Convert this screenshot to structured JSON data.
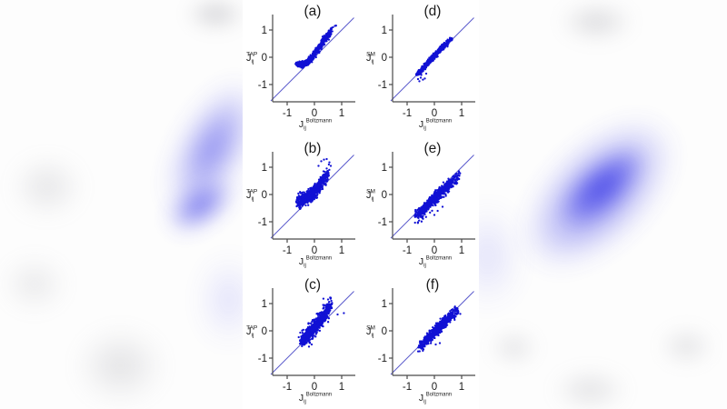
{
  "colors": {
    "point": "#1111d4",
    "identity_line": "#5c5ccd",
    "axis": "#4a4a4a",
    "text": "#1a1a1a",
    "background": "#ffffff",
    "backdrop_blue": "#4a4ae9",
    "backdrop_gray": "#a0a0a8"
  },
  "figure": {
    "x_tick_labels": [
      "-1",
      "0",
      "1"
    ],
    "y_tick_labels": [
      "1",
      "0",
      "-1"
    ]
  },
  "chart_data": [
    {
      "type": "scatter",
      "panel_label": "(a)",
      "grid": {
        "row": 0,
        "col": 0
      },
      "xlabel": {
        "base": "J",
        "sub": "ij",
        "sup": "Boltzmann"
      },
      "ylabel": {
        "base": "J",
        "sub": "ij",
        "sup": "TAP"
      },
      "xlim": [
        -1.55,
        1.45
      ],
      "ylim": [
        -1.6,
        1.6
      ],
      "x_ticks": [
        -1,
        0,
        1
      ],
      "y_ticks": [
        -1,
        0,
        1
      ],
      "identity_line": true,
      "scatter": {
        "n": 650,
        "seed": 11,
        "noise_sd": 0.05,
        "x_jitter": 0.04,
        "spread": "both",
        "trend": [
          [
            -0.62,
            -0.27
          ],
          [
            -0.42,
            -0.25
          ],
          [
            -0.22,
            -0.18
          ],
          [
            -0.02,
            0.1
          ],
          [
            0.18,
            0.38
          ],
          [
            0.38,
            0.63
          ],
          [
            0.55,
            0.88
          ],
          [
            0.72,
            1.08
          ]
        ],
        "weights": [
          2.2,
          2.2,
          2.0,
          1.8,
          1.6,
          1.2,
          0.5
        ],
        "outliers": [
          [
            0.75,
            1.15
          ],
          [
            0.68,
            1.1
          ],
          [
            0.6,
            1.02
          ]
        ]
      }
    },
    {
      "type": "scatter",
      "panel_label": "(d)",
      "grid": {
        "row": 0,
        "col": 1
      },
      "xlabel": {
        "base": "J",
        "sub": "ij",
        "sup": "Boltzmann"
      },
      "ylabel": {
        "base": "J",
        "sub": "ij",
        "sup": "SM"
      },
      "xlim": [
        -1.55,
        1.45
      ],
      "ylim": [
        -1.6,
        1.6
      ],
      "x_ticks": [
        -1,
        0,
        1
      ],
      "y_ticks": [
        -1,
        0,
        1
      ],
      "identity_line": true,
      "scatter": {
        "n": 650,
        "seed": 23,
        "noise_sd": 0.035,
        "x_jitter": 0.035,
        "spread": "both",
        "trend": [
          [
            -0.6,
            -0.62
          ],
          [
            -0.45,
            -0.46
          ],
          [
            -0.3,
            -0.28
          ],
          [
            -0.15,
            -0.11
          ],
          [
            0.0,
            0.05
          ],
          [
            0.2,
            0.26
          ],
          [
            0.4,
            0.47
          ],
          [
            0.63,
            0.7
          ]
        ],
        "weights": [
          1.5,
          2.0,
          2.5,
          2.5,
          2.0,
          1.5,
          1.0
        ],
        "outliers": [
          [
            -0.5,
            -0.75
          ],
          [
            -0.42,
            -0.82
          ],
          [
            -0.35,
            -0.78
          ],
          [
            -0.55,
            -0.88
          ],
          [
            -0.3,
            -0.6
          ],
          [
            -0.48,
            -0.65
          ],
          [
            -0.6,
            -0.8
          ]
        ]
      }
    },
    {
      "type": "scatter",
      "panel_label": "(b)",
      "grid": {
        "row": 1,
        "col": 0
      },
      "xlabel": {
        "base": "J",
        "sub": "ij",
        "sup": "Boltzmann"
      },
      "ylabel": {
        "base": "J",
        "sub": "ij",
        "sup": "TAP"
      },
      "xlim": [
        -1.55,
        1.45
      ],
      "ylim": [
        -1.6,
        1.6
      ],
      "x_ticks": [
        -1,
        0,
        1
      ],
      "y_ticks": [
        -1,
        0,
        1
      ],
      "identity_line": true,
      "scatter": {
        "n": 700,
        "seed": 37,
        "noise_sd": 0.11,
        "x_jitter": 0.05,
        "spread": "both",
        "trend": [
          [
            -0.6,
            -0.26
          ],
          [
            -0.4,
            -0.18
          ],
          [
            -0.2,
            -0.07
          ],
          [
            0.0,
            0.1
          ],
          [
            0.2,
            0.33
          ],
          [
            0.35,
            0.56
          ],
          [
            0.5,
            0.85
          ]
        ],
        "weights": [
          1.8,
          2.4,
          2.6,
          2.2,
          1.6,
          1.0
        ],
        "outliers": [
          [
            0.45,
            1.3
          ],
          [
            0.25,
            1.22
          ],
          [
            0.55,
            1.18
          ],
          [
            0.35,
            1.28
          ],
          [
            0.15,
            1.05
          ],
          [
            -0.65,
            -0.3
          ],
          [
            0.6,
            1.05
          ]
        ]
      }
    },
    {
      "type": "scatter",
      "panel_label": "(e)",
      "grid": {
        "row": 1,
        "col": 1
      },
      "xlabel": {
        "base": "J",
        "sub": "ij",
        "sup": "Boltzmann"
      },
      "ylabel": {
        "base": "J",
        "sub": "ij",
        "sup": "SM"
      },
      "xlim": [
        -1.55,
        1.45
      ],
      "ylim": [
        -1.6,
        1.6
      ],
      "x_ticks": [
        -1,
        0,
        1
      ],
      "y_ticks": [
        -1,
        0,
        1
      ],
      "identity_line": true,
      "scatter": {
        "n": 700,
        "seed": 51,
        "noise_sd": 0.16,
        "x_jitter": 0.05,
        "spread": "below",
        "trend": [
          [
            -0.68,
            -0.7
          ],
          [
            -0.45,
            -0.48
          ],
          [
            -0.2,
            -0.22
          ],
          [
            0.05,
            0.03
          ],
          [
            0.3,
            0.28
          ],
          [
            0.55,
            0.52
          ],
          [
            0.85,
            0.8
          ]
        ],
        "weights": [
          1.2,
          2.0,
          2.6,
          2.6,
          2.0,
          1.2
        ],
        "outliers": [
          [
            0.0,
            -0.75
          ],
          [
            0.12,
            -0.6
          ],
          [
            -0.5,
            -0.82
          ],
          [
            0.3,
            -0.45
          ],
          [
            0.9,
            0.85
          ]
        ]
      }
    },
    {
      "type": "scatter",
      "panel_label": "(c)",
      "grid": {
        "row": 2,
        "col": 0
      },
      "xlabel": {
        "base": "J",
        "sub": "ij",
        "sup": "Boltzmann"
      },
      "ylabel": {
        "base": "J",
        "sub": "ij",
        "sup": "TAP"
      },
      "xlim": [
        -1.55,
        1.45
      ],
      "ylim": [
        -1.6,
        1.6
      ],
      "x_ticks": [
        -1,
        0,
        1
      ],
      "y_ticks": [
        -1,
        0,
        1
      ],
      "identity_line": true,
      "scatter": {
        "n": 650,
        "seed": 67,
        "noise_sd": 0.13,
        "x_jitter": 0.06,
        "spread": "both",
        "trend": [
          [
            -0.5,
            -0.42
          ],
          [
            -0.3,
            -0.2
          ],
          [
            -0.1,
            0.02
          ],
          [
            0.1,
            0.25
          ],
          [
            0.3,
            0.5
          ],
          [
            0.45,
            0.75
          ],
          [
            0.58,
            0.98
          ]
        ],
        "weights": [
          1.4,
          2.2,
          2.6,
          2.4,
          1.8,
          1.0
        ],
        "outliers": [
          [
            1.08,
            0.65
          ],
          [
            0.85,
            0.6
          ],
          [
            0.5,
            1.15
          ],
          [
            0.33,
            1.18
          ],
          [
            -0.2,
            -0.58
          ],
          [
            -0.1,
            -0.5
          ],
          [
            0.62,
            1.1
          ]
        ]
      }
    },
    {
      "type": "scatter",
      "panel_label": "(f)",
      "grid": {
        "row": 2,
        "col": 1
      },
      "xlabel": {
        "base": "J",
        "sub": "ij",
        "sup": "Boltzmann"
      },
      "ylabel": {
        "base": "J",
        "sub": "ij",
        "sup": "SM"
      },
      "xlim": [
        -1.55,
        1.45
      ],
      "ylim": [
        -1.6,
        1.6
      ],
      "x_ticks": [
        -1,
        0,
        1
      ],
      "y_ticks": [
        -1,
        0,
        1
      ],
      "identity_line": true,
      "scatter": {
        "n": 680,
        "seed": 83,
        "noise_sd": 0.09,
        "x_jitter": 0.05,
        "spread": "both",
        "bias": -0.02,
        "trend": [
          [
            -0.55,
            -0.58
          ],
          [
            -0.32,
            -0.36
          ],
          [
            -0.08,
            -0.1
          ],
          [
            0.15,
            0.12
          ],
          [
            0.38,
            0.35
          ],
          [
            0.6,
            0.56
          ],
          [
            0.82,
            0.76
          ]
        ],
        "weights": [
          1.2,
          2.2,
          2.8,
          2.6,
          1.8,
          1.0
        ],
        "outliers": [
          [
            0.2,
            -0.45
          ],
          [
            -0.4,
            -0.68
          ],
          [
            0.75,
            0.85
          ],
          [
            0.95,
            0.62
          ],
          [
            0.05,
            -0.5
          ]
        ]
      }
    }
  ]
}
